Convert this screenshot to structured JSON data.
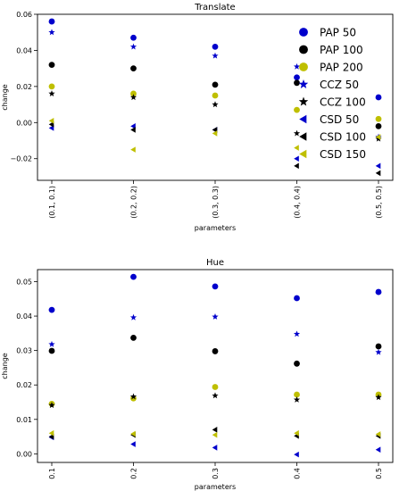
{
  "legend": {
    "position": "right",
    "entries": [
      {
        "label": "PAP 50",
        "color": "#0000cc",
        "marker": "circle"
      },
      {
        "label": "PAP 100",
        "color": "#000000",
        "marker": "circle"
      },
      {
        "label": "PAP 200",
        "color": "#bfbf00",
        "marker": "circle"
      },
      {
        "label": "CCZ 50",
        "color": "#0000cc",
        "marker": "star"
      },
      {
        "label": "CCZ 100",
        "color": "#000000",
        "marker": "star"
      },
      {
        "label": "CSD 50",
        "color": "#0000cc",
        "marker": "triangle-left"
      },
      {
        "label": "CSD 100",
        "color": "#000000",
        "marker": "triangle-left"
      },
      {
        "label": "CSD 150",
        "color": "#bfbf00",
        "marker": "triangle-left"
      }
    ]
  },
  "chart_data": [
    {
      "type": "scatter",
      "title": "Translate",
      "xlabel": "parameters",
      "ylabel": "change",
      "categories": [
        "(0.1, 0.1)",
        "(0.2, 0.2)",
        "(0.3, 0.3)",
        "(0.4, 0.4)",
        "(0.5, 0.5)"
      ],
      "ylim": [
        -0.032,
        0.06
      ],
      "yticks": [
        "0.06",
        "0.04",
        "0.02",
        "0.00",
        "−0.02"
      ],
      "ytick_values": [
        0.06,
        0.04,
        0.02,
        0.0,
        -0.02
      ],
      "grid": false,
      "series": [
        {
          "name": "PAP 50",
          "values": [
            0.056,
            0.047,
            0.042,
            0.025,
            0.014
          ]
        },
        {
          "name": "PAP 100",
          "values": [
            0.032,
            0.03,
            0.021,
            0.022,
            -0.002
          ]
        },
        {
          "name": "PAP 200",
          "values": [
            0.02,
            0.016,
            0.015,
            0.007,
            0.002
          ]
        },
        {
          "name": "CCZ 50",
          "values": [
            0.05,
            0.042,
            0.037,
            0.031,
            -0.008
          ]
        },
        {
          "name": "CCZ 100",
          "values": [
            0.016,
            0.014,
            0.01,
            -0.006,
            -0.009
          ]
        },
        {
          "name": "CSD 50",
          "values": [
            -0.003,
            -0.002,
            -0.004,
            -0.02,
            -0.024
          ]
        },
        {
          "name": "CSD 100",
          "values": [
            -0.001,
            -0.004,
            -0.004,
            -0.024,
            -0.028
          ]
        },
        {
          "name": "CSD 150",
          "values": [
            0.001,
            -0.015,
            -0.006,
            -0.014,
            -0.008
          ]
        }
      ]
    },
    {
      "type": "scatter",
      "title": "Hue",
      "xlabel": "parameters",
      "ylabel": "change",
      "categories": [
        "0.1",
        "0.2",
        "0.3",
        "0.4",
        "0.5"
      ],
      "ylim": [
        -0.0025,
        0.0535
      ],
      "yticks": [
        "0.05",
        "0.04",
        "0.03",
        "0.02",
        "0.01",
        "0.00"
      ],
      "ytick_values": [
        0.05,
        0.04,
        0.03,
        0.02,
        0.01,
        0.0
      ],
      "grid": false,
      "series": [
        {
          "name": "PAP 50",
          "values": [
            0.0418,
            0.0514,
            0.0486,
            0.0452,
            0.047
          ]
        },
        {
          "name": "PAP 100",
          "values": [
            0.0299,
            0.0337,
            0.0298,
            0.0262,
            0.0312
          ]
        },
        {
          "name": "PAP 200",
          "values": [
            0.0145,
            0.0161,
            0.0194,
            0.0172,
            0.0172
          ]
        },
        {
          "name": "CCZ 50",
          "values": [
            0.0318,
            0.0396,
            0.0398,
            0.0348,
            0.0295
          ]
        },
        {
          "name": "CCZ 100",
          "values": [
            0.0141,
            0.0166,
            0.0169,
            0.0157,
            0.0164
          ]
        },
        {
          "name": "CSD 50",
          "values": [
            0.0048,
            0.0028,
            0.0018,
            -0.0002,
            0.0012
          ]
        },
        {
          "name": "CSD 100",
          "values": [
            0.005,
            0.0055,
            0.007,
            0.0052,
            0.0052
          ]
        },
        {
          "name": "CSD 150",
          "values": [
            0.006,
            0.0058,
            0.0055,
            0.006,
            0.0057
          ]
        }
      ]
    }
  ]
}
